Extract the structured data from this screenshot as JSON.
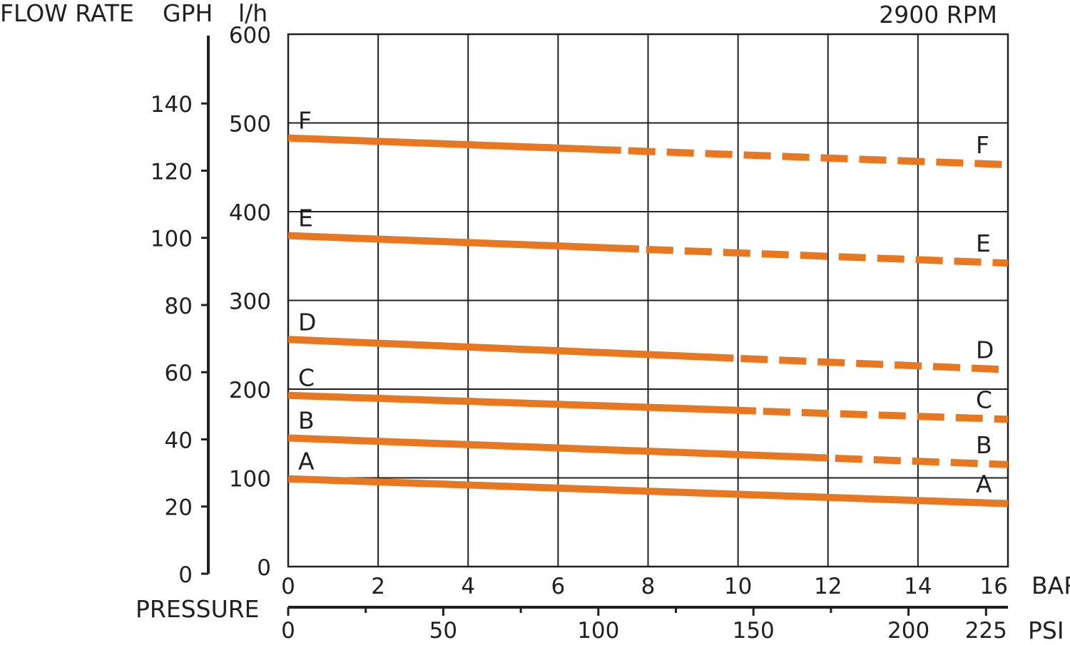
{
  "chart_data": {
    "type": "line",
    "title_right": "2900 RPM",
    "left_axis_title": "FLOW RATE",
    "gph_label": "GPH",
    "lh_label": "l/h",
    "pressure_label": "PRESSURE",
    "bar_unit": "BAR",
    "psi_unit": "PSI",
    "x_bar_ticks": [
      "0",
      "2",
      "4",
      "6",
      "8",
      "10",
      "12",
      "14",
      "16"
    ],
    "x_psi_ticks": [
      "0",
      "50",
      "100",
      "150",
      "200",
      "225"
    ],
    "y_lh_ticks": [
      "0",
      "100",
      "200",
      "300",
      "400",
      "500",
      "600"
    ],
    "y_gph_ticks": [
      "0",
      "20",
      "40",
      "60",
      "80",
      "100",
      "120",
      "140"
    ],
    "xlim": [
      0,
      16
    ],
    "ylim": [
      0,
      600
    ],
    "grid": true,
    "series": [
      {
        "name": "A",
        "start": 99,
        "end": 71,
        "solid_until": 16,
        "label_left": "A",
        "label_right": "A"
      },
      {
        "name": "B",
        "start": 145,
        "end": 115,
        "solid_until": 12,
        "label_left": "B",
        "label_right": "B"
      },
      {
        "name": "C",
        "start": 193,
        "end": 166,
        "solid_until": 10.4,
        "label_left": "C",
        "label_right": "C"
      },
      {
        "name": "D",
        "start": 256,
        "end": 222,
        "solid_until": 9.9,
        "label_left": "D",
        "label_right": "D"
      },
      {
        "name": "E",
        "start": 373,
        "end": 342,
        "solid_until": 7.8,
        "label_left": "E",
        "label_right": "E"
      },
      {
        "name": "F",
        "start": 483,
        "end": 453,
        "solid_until": 7.4,
        "label_left": "F",
        "label_right": "F"
      }
    ],
    "colors": {
      "series": "#e87722",
      "axis": "#231f20"
    }
  }
}
